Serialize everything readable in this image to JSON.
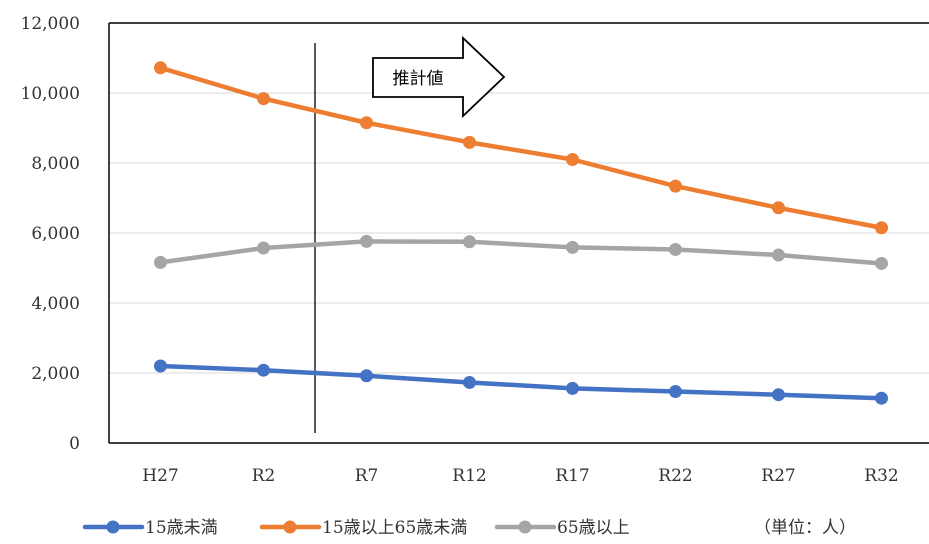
{
  "chart_data": {
    "type": "line",
    "categories": [
      "H27",
      "R2",
      "R7",
      "R12",
      "R17",
      "R22",
      "R27",
      "R32"
    ],
    "ylim": [
      0,
      12000
    ],
    "yticks": [
      0,
      2000,
      4000,
      6000,
      8000,
      10000,
      12000
    ],
    "ytick_labels": [
      "0",
      "2,000",
      "4,000",
      "6,000",
      "8,000",
      "10,000",
      "12,000"
    ],
    "grid": true,
    "legend_position": "bottom",
    "series": [
      {
        "name": "15歳未満",
        "color": "#4472C4",
        "values": [
          2200,
          2080,
          1920,
          1730,
          1560,
          1470,
          1380,
          1280
        ]
      },
      {
        "name": "15歳以上65歳未満",
        "color": "#ED7D31",
        "values": [
          10720,
          9840,
          9150,
          8590,
          8100,
          7340,
          6720,
          6150
        ]
      },
      {
        "name": "65歳以上",
        "color": "#A5A5A5",
        "values": [
          5160,
          5570,
          5760,
          5750,
          5590,
          5530,
          5370,
          5130
        ]
      }
    ],
    "annotation": "推計値",
    "unit_note": "（単位：人）"
  }
}
